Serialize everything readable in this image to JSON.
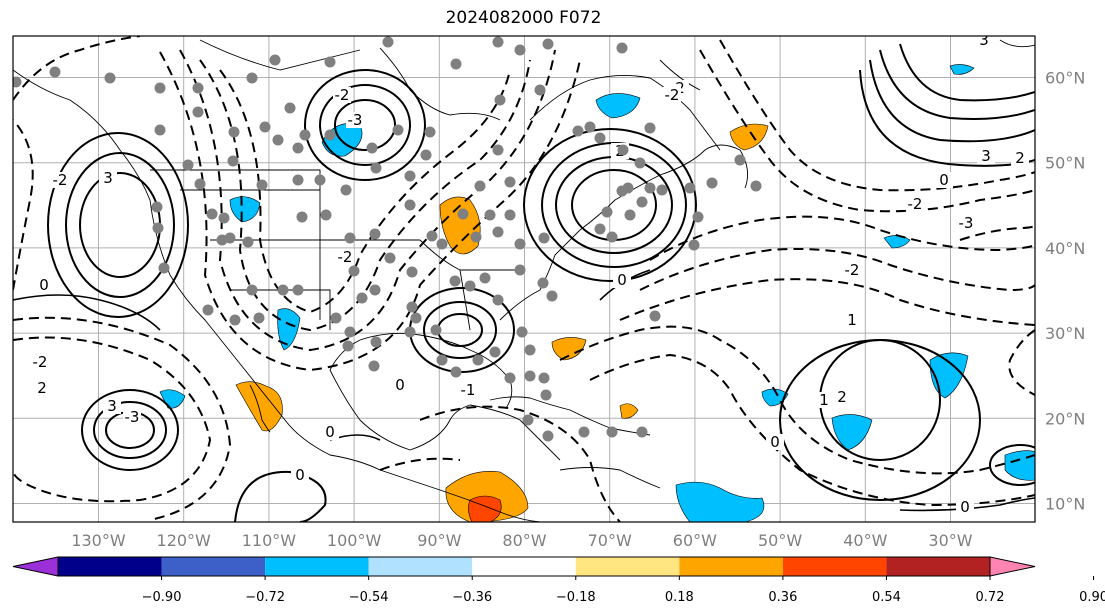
{
  "title": "2024082000 F072",
  "map": {
    "lon_range": [
      -140,
      -20
    ],
    "lat_range": [
      8,
      65
    ],
    "lon_ticks": [
      "130°W",
      "120°W",
      "110°W",
      "100°W",
      "90°W",
      "80°W",
      "70°W",
      "60°W",
      "50°W",
      "40°W",
      "30°W"
    ],
    "lat_ticks": [
      "60°N",
      "50°N",
      "40°N",
      "30°N",
      "20°N",
      "10°N"
    ],
    "grid": true
  },
  "colorbar": {
    "tick_labels": [
      "−0.90",
      "−0.72",
      "−0.54",
      "−0.36",
      "−0.18",
      "0.18",
      "0.36",
      "0.54",
      "0.72",
      "0.90"
    ],
    "colors": [
      "#9b30d9",
      "#00008b",
      "#3c5fc8",
      "#00bfff",
      "#b0e2ff",
      "#ffffff",
      "#ffe680",
      "#ffa500",
      "#ff4500",
      "#b22222",
      "#ff85b0"
    ],
    "extend": "both"
  },
  "contour_labels": [
    {
      "text": "0"
    },
    {
      "text": "2"
    },
    {
      "text": "3"
    },
    {
      "text": "-2"
    },
    {
      "text": "0"
    },
    {
      "text": "3"
    },
    {
      "text": "-2"
    },
    {
      "text": "0"
    },
    {
      "text": "-3"
    },
    {
      "text": "2"
    },
    {
      "text": "0"
    },
    {
      "text": "0"
    },
    {
      "text": "3"
    },
    {
      "text": "-2"
    },
    {
      "text": "-3"
    },
    {
      "text": "-2"
    },
    {
      "text": "1"
    },
    {
      "text": "2"
    },
    {
      "text": "1"
    },
    {
      "text": "0"
    },
    {
      "text": "2"
    },
    {
      "text": "-2"
    },
    {
      "text": "3"
    },
    {
      "text": "2"
    },
    {
      "text": "-2"
    },
    {
      "text": "-3"
    },
    {
      "text": "-2"
    },
    {
      "text": "0"
    },
    {
      "text": "-1"
    },
    {
      "text": "0"
    }
  ],
  "style": {
    "frame_color": "#000000",
    "grid_color": "#b0b0b0",
    "station_color": "#808080",
    "positive_shade": "#ffa500",
    "negative_shade": "#00bfff"
  }
}
